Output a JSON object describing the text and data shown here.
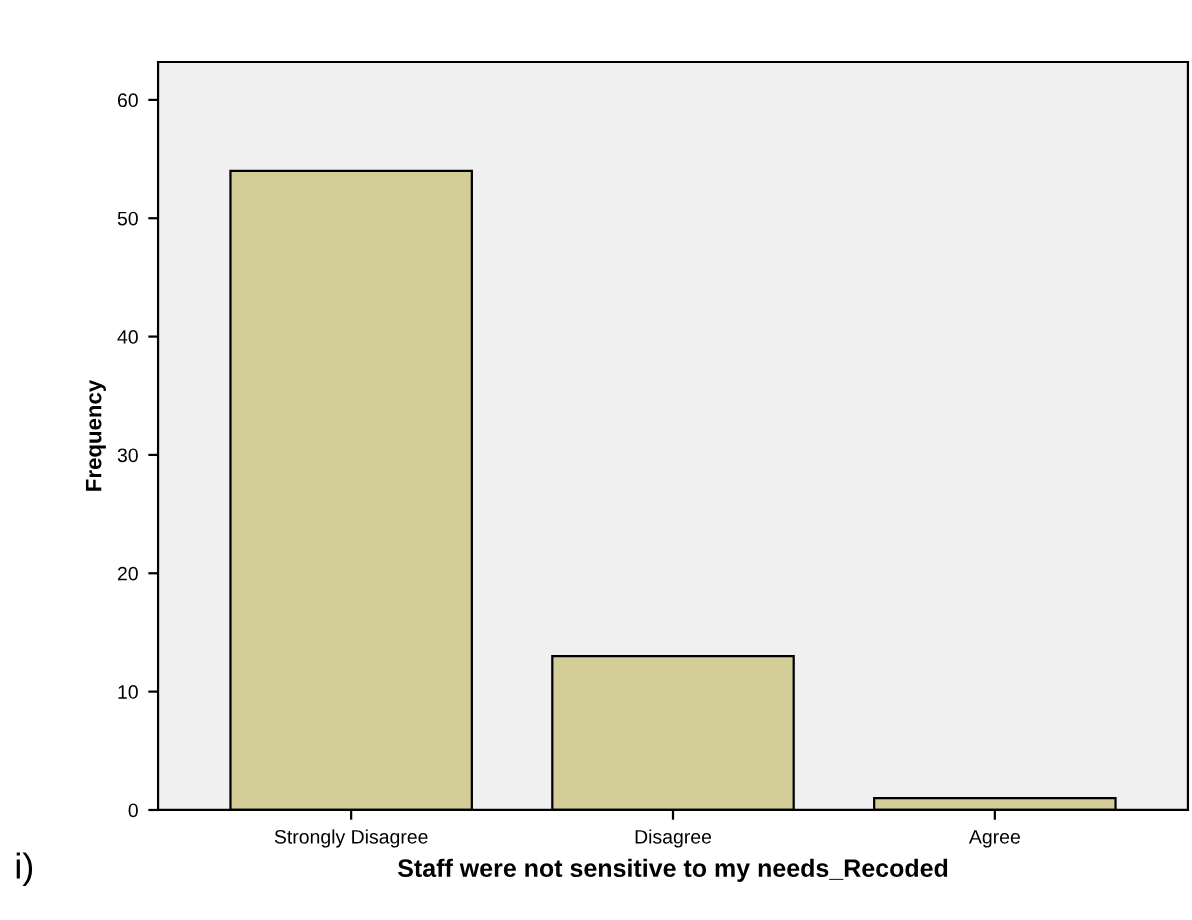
{
  "chart_data": {
    "type": "bar",
    "xlabel": "Staff were not sensitive to my needs_Recoded",
    "ylabel": "Frequency",
    "categories": [
      "Strongly Disagree",
      "Disagree",
      "Agree"
    ],
    "values": [
      54,
      13,
      1
    ],
    "color": "#d3cd98",
    "ylim": [
      0,
      63.2
    ],
    "yticks": [
      0,
      10,
      20,
      30,
      40,
      50,
      60
    ],
    "grid": false,
    "annotations": [
      "i)"
    ]
  }
}
